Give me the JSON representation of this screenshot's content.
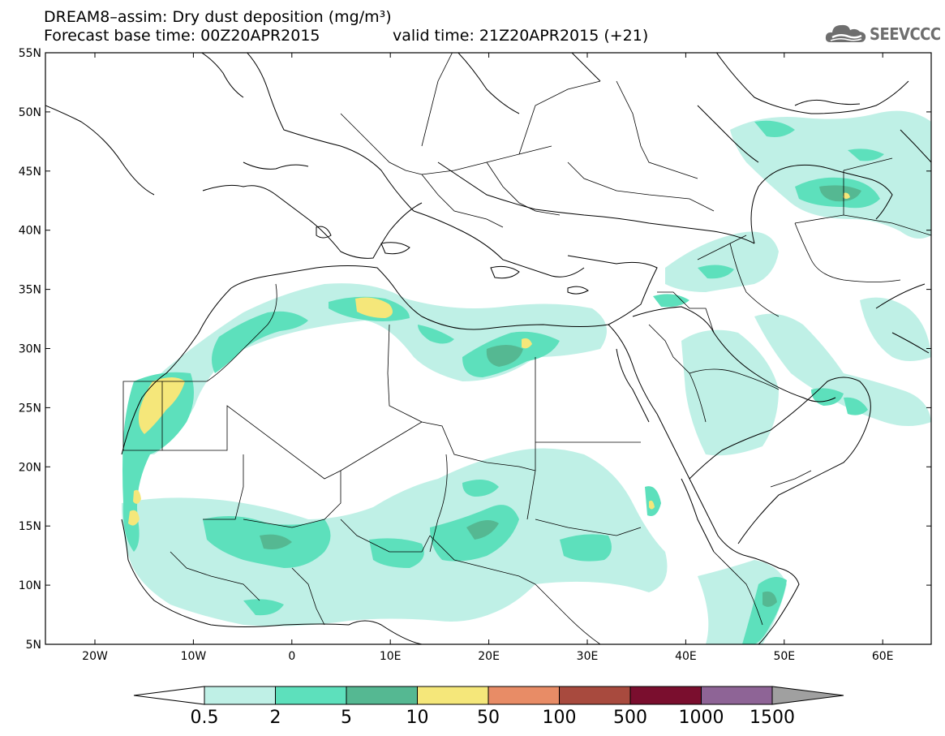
{
  "header": {
    "title_line1": "DREAM8–assim: Dry dust deposition (mg/m³)",
    "title_line2": "Forecast base time: 00Z20APR2015",
    "valid_time": "valid time: 21Z20APR2015 (+21)",
    "logo_text": "SEEVCCC"
  },
  "map": {
    "lat_labels": [
      "55N",
      "50N",
      "45N",
      "40N",
      "35N",
      "30N",
      "25N",
      "20N",
      "15N",
      "10N",
      "5N"
    ],
    "lon_labels": [
      "20W",
      "10W",
      "0",
      "10E",
      "20E",
      "30E",
      "40E",
      "50E",
      "60E"
    ]
  },
  "legend": {
    "colors": [
      "#bff0e6",
      "#5de0bc",
      "#55b892",
      "#f5e77a",
      "#e88c66",
      "#a84a3e",
      "#7a0e2e",
      "#8e6496"
    ],
    "lower_arrow_color": "#ffffff",
    "upper_arrow_color": "#a0a0a0",
    "labels": [
      "0.5",
      "2",
      "5",
      "10",
      "50",
      "100",
      "500",
      "1000",
      "1500"
    ]
  }
}
